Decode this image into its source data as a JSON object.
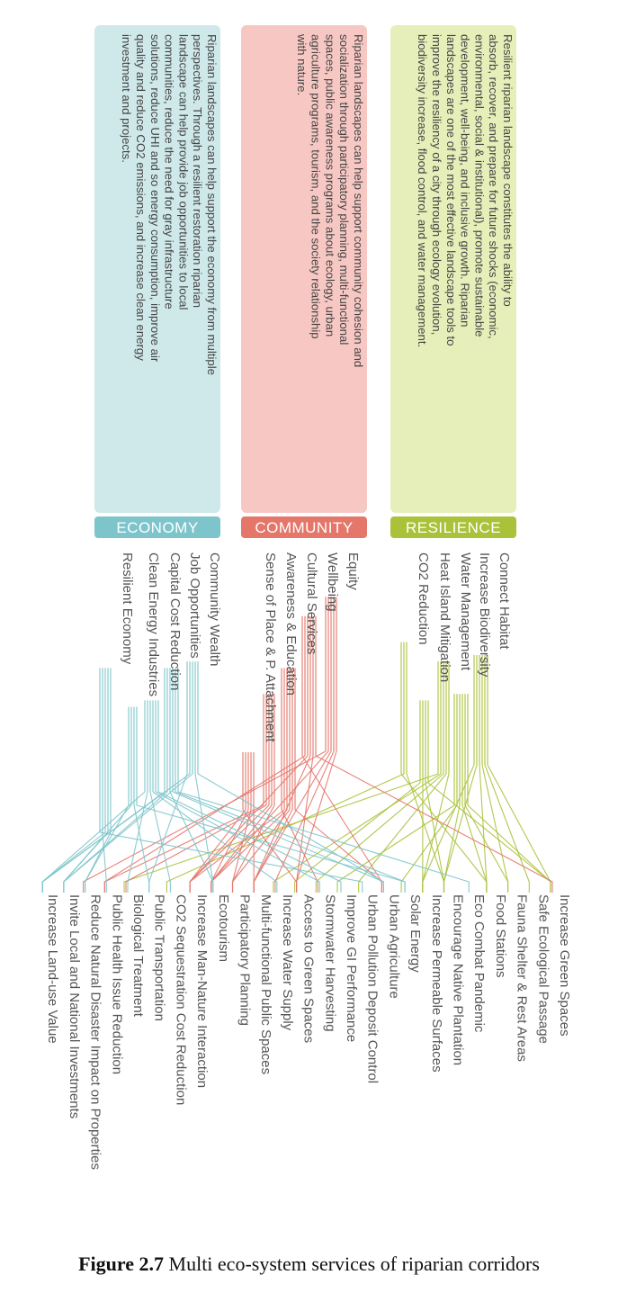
{
  "colors": {
    "resilience": "#a9c23a",
    "resilience_box": "#e6efb9",
    "community": "#e4766a",
    "community_box": "#f7c8c3",
    "economy": "#7ec5cb",
    "economy_box": "#cfe8ea",
    "label_text": "#555555"
  },
  "categories": [
    {
      "id": "resilience",
      "tag": "RESILIENCE",
      "description": "Resilient riparian landscape constitutes the ability to absorb, recover, and prepare for future shocks (economic, environmental, social & institutional), promote sustainable development, well-being, and inclusive growth. Riparian landscapes are one of the most effective landscape tools to improve the resiliency of a city through ecology evolution, biodiversity increase, flood control, and water management.",
      "services": [
        "Connect Habitat",
        "Increase Biodiversity",
        "Water Management",
        "Heat Island Mitigation",
        "CO2 Reduction"
      ]
    },
    {
      "id": "community",
      "tag": "COMMUNITY",
      "description": "Riparian landscapes can help support community cohesion and socialization through participatory planning, multi-functional spaces, public awareness programs about ecology, urban agriculture programs, tourism, and the society relationship with nature.",
      "services": [
        "Equity",
        "Wellbeing",
        "Cultural Services",
        "Awareness & Education",
        "Sense of Place & P. Attachment"
      ]
    },
    {
      "id": "economy",
      "tag": "ECONOMY",
      "description": "Riparian landscapes can help support the economy from multiple perspectives. Through a resilient restoration riparian landscape can help provide job opportunities to local communities, reduce the need for gray infrastructure solutions, reduce UHI and so energy consumption, improve air quality and reduce CO2 emissions, and increase clean energy investment and projects.",
      "services": [
        "Community Wealth",
        "Job Opportunities",
        "Capital Cost Reduction",
        "Clean Energy Industries",
        "Resilient Economy"
      ]
    }
  ],
  "strategies": [
    "Increase Green Spaces",
    "Safe Ecological Passage",
    "Fauna Shelter & Rest Areas",
    "Food Stations",
    "Eco Combat Pandemic",
    "Encourage Native Plantation",
    "Increase Permeable Surfaces",
    "Solar Energy",
    "Urban Agriculture",
    "Urban Pollution Deposit Control",
    "Improve GI Performance",
    "Stormwater Harvesting",
    "Access to Green Spaces",
    "Increase Water Supply",
    "Multi-functional Public Spaces",
    "Participatory Planning",
    "Ecotourism",
    "Increase Man-Nature Interaction",
    "CO2 Sequestration Cost Reduction",
    "Public Transportation",
    "Biological Treatment",
    "Public Health Issue Reduction",
    "Reduce Natural Disaster Impact on Properties",
    "Invite Local and National Investments",
    "Increase Land-use Value"
  ],
  "caption": {
    "label": "Figure 2.7",
    "text": "Multi eco-system services of riparian corridors"
  }
}
